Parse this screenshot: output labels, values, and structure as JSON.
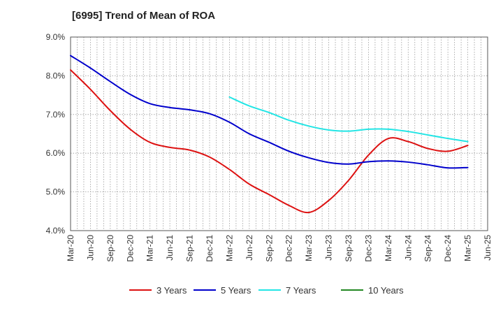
{
  "chart_data": {
    "type": "line",
    "title": "[6995]  Trend of Mean of ROA",
    "xlabel": "",
    "ylabel": "",
    "ylim": [
      4.0,
      9.0
    ],
    "y_ticks": [
      4.0,
      5.0,
      6.0,
      7.0,
      8.0,
      9.0
    ],
    "y_tick_labels": [
      "4.0%",
      "5.0%",
      "6.0%",
      "7.0%",
      "8.0%",
      "9.0%"
    ],
    "x_tick_labels": [
      "Mar-20",
      "Jun-20",
      "Sep-20",
      "Dec-20",
      "Mar-21",
      "Jun-21",
      "Sep-21",
      "Dec-21",
      "Mar-22",
      "Jun-22",
      "Sep-22",
      "Dec-22",
      "Mar-23",
      "Jun-23",
      "Sep-23",
      "Dec-23",
      "Mar-24",
      "Jun-24",
      "Sep-24",
      "Dec-24",
      "Mar-25",
      "Jun-25"
    ],
    "grid": true,
    "legend_position": "bottom",
    "series": [
      {
        "name": "3 Years",
        "color": "#dd1111",
        "values": [
          8.15,
          7.65,
          7.1,
          6.62,
          6.28,
          6.15,
          6.08,
          5.9,
          5.58,
          5.2,
          4.93,
          4.65,
          4.47,
          4.78,
          5.3,
          5.95,
          6.38,
          6.3,
          6.12,
          6.05,
          6.2,
          null
        ]
      },
      {
        "name": "5 Years",
        "color": "#0000cc",
        "values": [
          8.52,
          8.2,
          7.85,
          7.52,
          7.28,
          7.18,
          7.12,
          7.02,
          6.8,
          6.5,
          6.28,
          6.05,
          5.88,
          5.76,
          5.72,
          5.78,
          5.8,
          5.77,
          5.7,
          5.62,
          5.63,
          null
        ]
      },
      {
        "name": "7 Years",
        "color": "#22e5e5",
        "values": [
          null,
          null,
          null,
          null,
          null,
          null,
          null,
          null,
          7.45,
          7.22,
          7.05,
          6.85,
          6.7,
          6.6,
          6.57,
          6.62,
          6.62,
          6.56,
          6.47,
          6.38,
          6.3,
          null
        ]
      },
      {
        "name": "10 Years",
        "color": "#228822",
        "values": []
      }
    ]
  }
}
